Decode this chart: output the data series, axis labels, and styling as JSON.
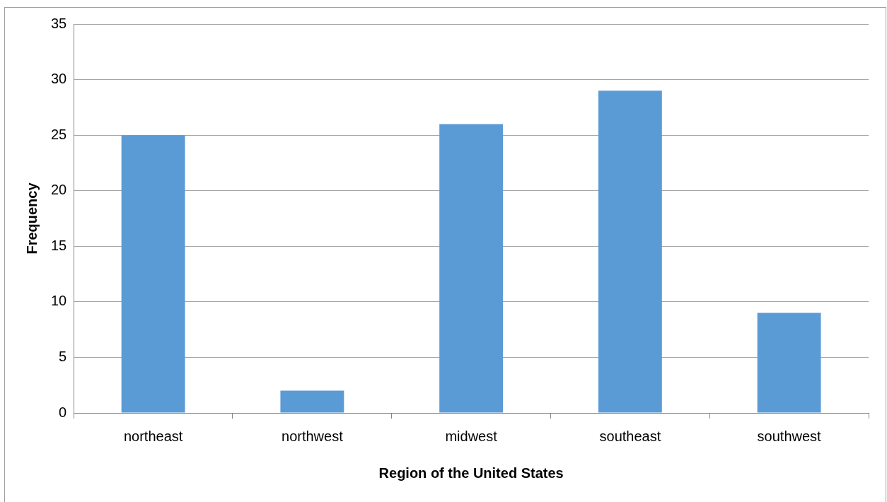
{
  "chart_data": {
    "type": "bar",
    "xlabel": "Region of the United States",
    "ylabel": "Frequency",
    "categories": [
      "northeast",
      "northwest",
      "midwest",
      "southeast",
      "southwest"
    ],
    "values": [
      25,
      2,
      26,
      29,
      9
    ],
    "color": "#5b9bd5",
    "ylim": [
      0,
      35
    ],
    "yticks": [
      0,
      5,
      10,
      15,
      20,
      25,
      30,
      35
    ],
    "grid": "y",
    "legend": false
  }
}
